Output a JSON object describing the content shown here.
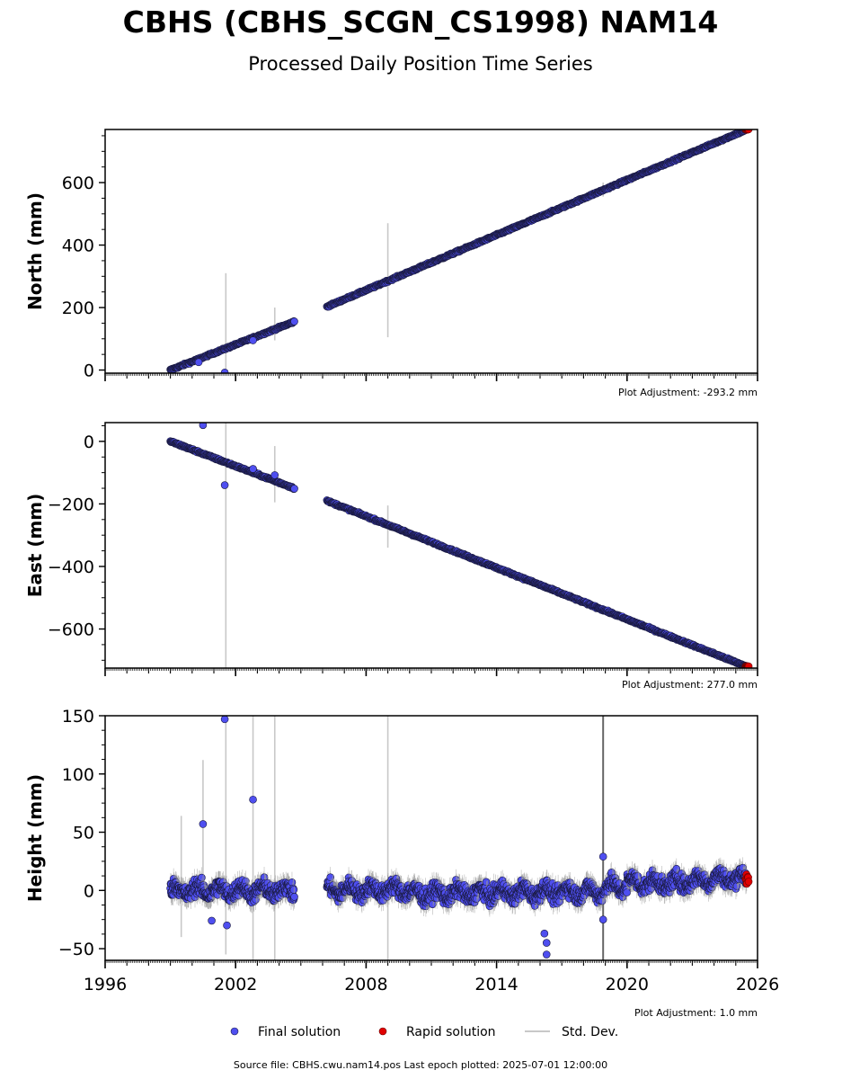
{
  "title": "CBHS (CBHS_SCGN_CS1998) NAM14",
  "subtitle": "Processed Daily Position Time Series",
  "colors": {
    "final": "#4f4ff0",
    "final_edge": "#1a1a40",
    "rapid": "#e00000",
    "stddev": "#c8c8c8",
    "axis": "#000000"
  },
  "legend": {
    "final": "Final solution",
    "rapid": "Rapid solution",
    "stddev": "Std. Dev."
  },
  "footer": "Source file: CBHS.cwu.nam14.pos  Last epoch plotted: 2025-07-01 12:00:00",
  "chart_data": [
    {
      "type": "scatter",
      "ylabel": "North (mm)",
      "adjustment": "Plot Adjustment: -293.2 mm",
      "xlim": [
        1996,
        2026
      ],
      "ylim": [
        -10,
        770
      ],
      "yticks": [
        0,
        200,
        400,
        600
      ],
      "ytick_labels": [
        "0",
        "200",
        "400",
        "600"
      ],
      "segments": [
        {
          "start": 1999.0,
          "end": 2004.7,
          "y0": 0,
          "y1": 155
        },
        {
          "start": 2006.2,
          "end": 2025.5,
          "y0": 203,
          "y1": 770
        }
      ],
      "outliers": [
        [
          2001.5,
          -8
        ],
        [
          2000.3,
          25
        ],
        [
          2002.8,
          95
        ]
      ],
      "stddev_bars": [
        [
          2001.55,
          0,
          310
        ],
        [
          2003.8,
          95,
          200
        ],
        [
          2009.0,
          105,
          470
        ],
        [
          2018.9,
          555,
          600
        ]
      ]
    },
    {
      "type": "scatter",
      "ylabel": "East (mm)",
      "adjustment": "Plot Adjustment: 277.0 mm",
      "xlim": [
        1996,
        2026
      ],
      "ylim": [
        -725,
        60
      ],
      "yticks": [
        0,
        -200,
        -400,
        -600
      ],
      "ytick_labels": [
        "0",
        "−200",
        "−400",
        "−600"
      ],
      "segments": [
        {
          "start": 1999.0,
          "end": 2004.7,
          "y0": 0,
          "y1": -150
        },
        {
          "start": 2006.2,
          "end": 2025.5,
          "y0": -190,
          "y1": -720
        }
      ],
      "outliers": [
        [
          2000.5,
          52
        ],
        [
          2001.5,
          -140
        ],
        [
          2002.8,
          -88
        ],
        [
          2003.8,
          -108
        ]
      ],
      "stddev_bars": [
        [
          2001.55,
          -725,
          60
        ],
        [
          2003.8,
          -195,
          -15
        ],
        [
          2009.0,
          -340,
          -205
        ]
      ]
    },
    {
      "type": "scatter",
      "ylabel": "Height (mm)",
      "adjustment": "Plot Adjustment: 1.0 mm",
      "xlim": [
        1996,
        2026
      ],
      "ylim": [
        -60,
        150
      ],
      "yticks": [
        -50,
        0,
        50,
        100,
        150
      ],
      "ytick_labels": [
        "−50",
        "0",
        "50",
        "100",
        "150"
      ],
      "xticks": [
        1996,
        2002,
        2008,
        2014,
        2020,
        2026
      ],
      "xtick_labels": [
        "1996",
        "2002",
        "2008",
        "2014",
        "2020",
        "2026"
      ],
      "segments": [
        {
          "start": 1999.0,
          "end": 2004.7,
          "y0": 0,
          "y1": 0
        },
        {
          "start": 2006.2,
          "end": 2025.5,
          "y0": 0,
          "y1": 5
        }
      ],
      "outliers": [
        [
          2001.5,
          147
        ],
        [
          2002.8,
          78
        ],
        [
          2000.5,
          57
        ],
        [
          2001.6,
          -30
        ],
        [
          2016.3,
          -55
        ],
        [
          2016.3,
          -45
        ],
        [
          2016.2,
          -37
        ],
        [
          2018.9,
          29
        ],
        [
          2018.9,
          -25
        ],
        [
          2000.9,
          -26
        ]
      ],
      "stddev_bars": [
        [
          2001.55,
          -55,
          150
        ],
        [
          2002.8,
          -60,
          150
        ],
        [
          2003.8,
          -60,
          150
        ],
        [
          2009.0,
          -60,
          150
        ],
        [
          2000.5,
          -10,
          112
        ],
        [
          1999.5,
          -40,
          64
        ]
      ]
    }
  ]
}
